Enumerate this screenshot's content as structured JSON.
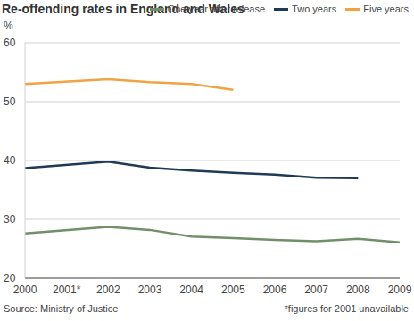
{
  "chart_data": {
    "type": "line",
    "title": "Re-offending rates in England and Wales",
    "y_label": "%",
    "categories": [
      "2000",
      "2001*",
      "2002",
      "2003",
      "2004",
      "2005",
      "2006",
      "2007",
      "2008",
      "2009"
    ],
    "series": [
      {
        "name": "One year after release",
        "color": "#718f68",
        "values": [
          27.6,
          null,
          28.7,
          28.2,
          27.1,
          26.8,
          26.5,
          26.3,
          26.7,
          26.1
        ]
      },
      {
        "name": "Two years",
        "color": "#1e3a57",
        "values": [
          38.7,
          null,
          39.8,
          38.8,
          38.3,
          37.9,
          37.6,
          37.1,
          37.0,
          null
        ]
      },
      {
        "name": "Five years",
        "color": "#f2a245",
        "values": [
          53.0,
          null,
          53.8,
          53.3,
          53.0,
          52.0,
          null,
          null,
          null,
          null
        ]
      }
    ],
    "ylim": [
      20,
      60
    ],
    "yticks": [
      20,
      30,
      40,
      50,
      60
    ],
    "grid": true,
    "legend": "top",
    "source": "Source: Ministry of Justice",
    "note": "*figures for 2001 unavailable"
  }
}
